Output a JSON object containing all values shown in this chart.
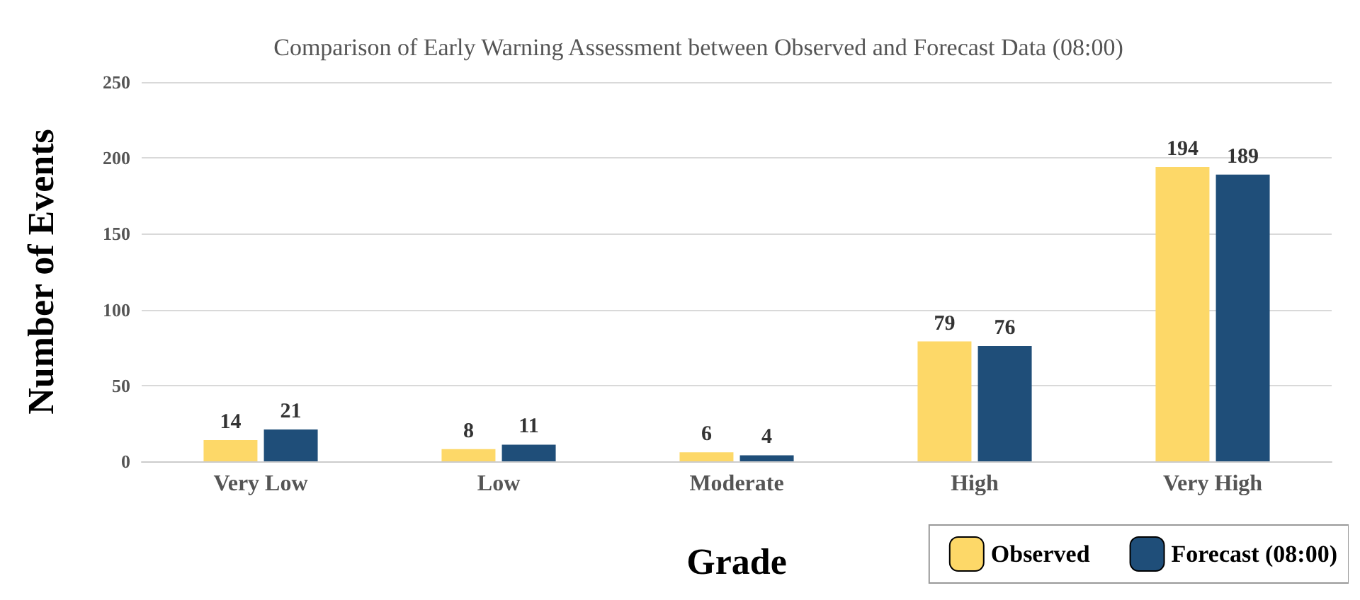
{
  "chart_data": {
    "type": "bar",
    "title": "Comparison of Early Warning Assessment between Observed and Forecast Data (08:00)",
    "xlabel": "Grade",
    "ylabel": "Number of Events",
    "categories": [
      "Very Low",
      "Low",
      "Moderate",
      "High",
      "Very High"
    ],
    "series": [
      {
        "name": "Observed",
        "color": "#fdd868",
        "values": [
          14,
          8,
          6,
          79,
          194
        ]
      },
      {
        "name": "Forecast (08:00)",
        "color": "#1f4e79",
        "values": [
          21,
          11,
          4,
          76,
          189
        ]
      }
    ],
    "ylim": [
      0,
      250
    ],
    "yticks": [
      0,
      50,
      100,
      150,
      200,
      250
    ],
    "grid": "y",
    "legend": "bottom right",
    "data_labels": true
  }
}
